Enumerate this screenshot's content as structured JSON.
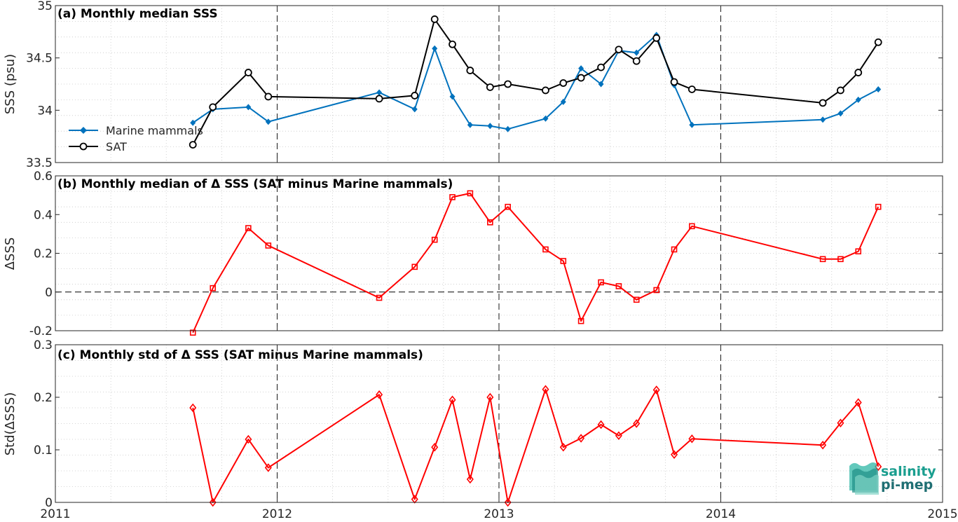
{
  "chart_data": [
    {
      "type": "line",
      "title": "(a) Monthly median SSS",
      "ylabel": "SSS (psu)",
      "xlim": [
        2011,
        2015
      ],
      "ylim": [
        33.5,
        35
      ],
      "yticks": [
        "33.5",
        "34",
        "34.5",
        "35"
      ],
      "grid": "dotted",
      "legend_position": "bottom-left",
      "series": [
        {
          "name": "Marine mammals",
          "color": "#0072bd",
          "marker": "diamond",
          "x": [
            2011.62,
            2011.71,
            2011.87,
            2011.96,
            2012.46,
            2012.62,
            2012.71,
            2012.79,
            2012.87,
            2012.96,
            2013.04,
            2013.21,
            2013.29,
            2013.37,
            2013.46,
            2013.54,
            2013.62,
            2013.71,
            2013.79,
            2013.87,
            2014.46,
            2014.54,
            2014.62,
            2014.71
          ],
          "y": [
            33.88,
            34.01,
            34.03,
            33.89,
            34.17,
            34.01,
            34.59,
            34.13,
            33.86,
            33.85,
            33.82,
            33.92,
            34.08,
            34.4,
            34.25,
            34.57,
            34.55,
            34.72,
            34.24,
            33.86,
            33.91,
            33.97,
            34.1,
            34.2
          ]
        },
        {
          "name": "SAT",
          "color": "#000000",
          "marker": "circle",
          "x": [
            2011.62,
            2011.71,
            2011.87,
            2011.96,
            2012.46,
            2012.62,
            2012.71,
            2012.79,
            2012.87,
            2012.96,
            2013.04,
            2013.21,
            2013.29,
            2013.37,
            2013.46,
            2013.54,
            2013.62,
            2013.71,
            2013.79,
            2013.87,
            2014.46,
            2014.54,
            2014.62,
            2014.71
          ],
          "y": [
            33.67,
            34.03,
            34.36,
            34.13,
            34.11,
            34.14,
            34.87,
            34.63,
            34.38,
            34.22,
            34.25,
            34.19,
            34.26,
            34.31,
            34.41,
            34.58,
            34.47,
            34.69,
            34.27,
            34.2,
            34.07,
            34.19,
            34.36,
            34.65
          ]
        }
      ]
    },
    {
      "type": "line",
      "title": "(b) Monthly median of Δ SSS (SAT minus Marine mammals)",
      "ylabel": "ΔSSS",
      "xlim": [
        2011,
        2015
      ],
      "ylim": [
        -0.2,
        0.6
      ],
      "yticks": [
        "-0.2",
        "0",
        "0.2",
        "0.4",
        "0.6"
      ],
      "grid": "dotted",
      "zero_line": "dashed",
      "series": [
        {
          "color": "#ff0000",
          "marker": "square",
          "x": [
            2011.62,
            2011.71,
            2011.87,
            2011.96,
            2012.46,
            2012.62,
            2012.71,
            2012.79,
            2012.87,
            2012.96,
            2013.04,
            2013.21,
            2013.29,
            2013.37,
            2013.46,
            2013.54,
            2013.62,
            2013.71,
            2013.79,
            2013.87,
            2014.46,
            2014.54,
            2014.62,
            2014.71
          ],
          "y": [
            -0.21,
            0.02,
            0.33,
            0.24,
            -0.03,
            0.13,
            0.27,
            0.49,
            0.51,
            0.36,
            0.44,
            0.22,
            0.16,
            -0.15,
            0.05,
            0.03,
            -0.04,
            0.01,
            0.22,
            0.34,
            0.17,
            0.17,
            0.21,
            0.44
          ]
        }
      ]
    },
    {
      "type": "line",
      "title": "(c) Monthly std of Δ SSS (SAT minus Marine mammals)",
      "ylabel": "Std(ΔSSS)",
      "xlim": [
        2011,
        2015
      ],
      "ylim": [
        0,
        0.3
      ],
      "yticks": [
        "0",
        "0.1",
        "0.2",
        "0.3"
      ],
      "xticks": [
        "2011",
        "2012",
        "2013",
        "2014",
        "2015"
      ],
      "grid": "dotted",
      "series": [
        {
          "color": "#ff0000",
          "marker": "diamond-open",
          "x": [
            2011.62,
            2011.71,
            2011.87,
            2011.96,
            2012.46,
            2012.62,
            2012.71,
            2012.79,
            2012.87,
            2012.96,
            2013.04,
            2013.21,
            2013.29,
            2013.37,
            2013.46,
            2013.54,
            2013.62,
            2013.71,
            2013.79,
            2013.87,
            2014.46,
            2014.54,
            2014.62,
            2014.71
          ],
          "y": [
            0.18,
            0.0,
            0.12,
            0.066,
            0.205,
            0.006,
            0.105,
            0.195,
            0.044,
            0.2,
            0.0,
            0.215,
            0.105,
            0.122,
            0.148,
            0.127,
            0.15,
            0.214,
            0.091,
            0.121,
            0.109,
            0.151,
            0.19,
            0.068
          ]
        }
      ]
    }
  ],
  "logo": {
    "line1": "salinity",
    "line2": "pi-mep"
  },
  "colors": {
    "axis": "#262626",
    "grid": "#c8c8c8",
    "mammals": "#0072bd",
    "sat": "#000000",
    "delta": "#ff0000",
    "logo": "#1a9e8f"
  }
}
